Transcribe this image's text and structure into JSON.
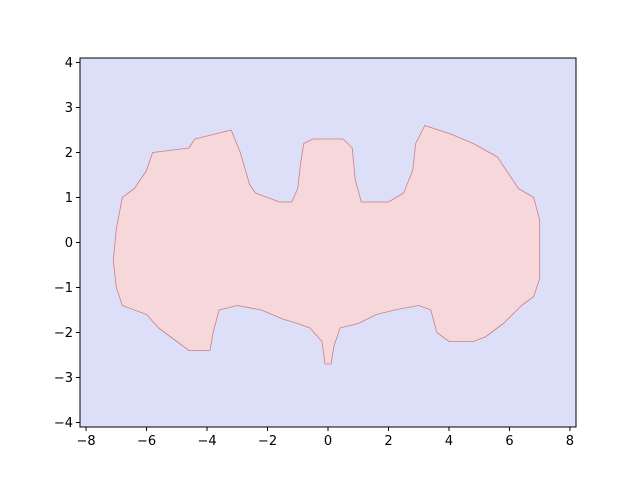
{
  "chart_data": {
    "type": "heatmap",
    "title": "",
    "xlabel": "",
    "ylabel": "",
    "xlim": [
      -8.2,
      8.2
    ],
    "ylim": [
      -4.1,
      4.1
    ],
    "x_ticks": [
      -8,
      -6,
      -4,
      -2,
      0,
      2,
      4,
      6,
      8
    ],
    "x_tick_labels": [
      "−8",
      "−6",
      "−4",
      "−2",
      "0",
      "2",
      "4",
      "6",
      "8"
    ],
    "y_ticks": [
      -4,
      -3,
      -2,
      -1,
      0,
      1,
      2,
      3,
      4
    ],
    "y_tick_labels": [
      "−4",
      "−3",
      "−2",
      "−1",
      "0",
      "1",
      "2",
      "3",
      "4"
    ],
    "grid": false,
    "legend": "none",
    "regions": [
      {
        "class": "background",
        "color": "#dcdff7"
      },
      {
        "class": "bat-shape",
        "color": "#f6d8da",
        "edge_color": "#c97f88",
        "boundary": [
          [
            -7.0,
            0.3
          ],
          [
            -6.8,
            1.0
          ],
          [
            -6.4,
            1.2
          ],
          [
            -6.0,
            1.6
          ],
          [
            -5.8,
            2.0
          ],
          [
            -4.6,
            2.1
          ],
          [
            -4.4,
            2.3
          ],
          [
            -3.8,
            2.4
          ],
          [
            -3.2,
            2.5
          ],
          [
            -2.9,
            2.0
          ],
          [
            -2.6,
            1.3
          ],
          [
            -2.4,
            1.1
          ],
          [
            -2.0,
            1.0
          ],
          [
            -1.6,
            0.9
          ],
          [
            -1.2,
            0.9
          ],
          [
            -1.0,
            1.2
          ],
          [
            -0.9,
            1.8
          ],
          [
            -0.8,
            2.2
          ],
          [
            -0.5,
            2.3
          ],
          [
            0.5,
            2.3
          ],
          [
            0.8,
            2.1
          ],
          [
            0.9,
            1.4
          ],
          [
            1.1,
            0.9
          ],
          [
            2.0,
            0.9
          ],
          [
            2.5,
            1.1
          ],
          [
            2.8,
            1.6
          ],
          [
            2.9,
            2.2
          ],
          [
            3.2,
            2.6
          ],
          [
            4.1,
            2.4
          ],
          [
            4.8,
            2.2
          ],
          [
            5.6,
            1.9
          ],
          [
            6.3,
            1.2
          ],
          [
            6.8,
            1.0
          ],
          [
            7.0,
            0.5
          ],
          [
            7.0,
            -0.8
          ],
          [
            6.8,
            -1.2
          ],
          [
            6.4,
            -1.4
          ],
          [
            5.8,
            -1.8
          ],
          [
            5.2,
            -2.1
          ],
          [
            4.8,
            -2.2
          ],
          [
            4.0,
            -2.2
          ],
          [
            3.6,
            -2.0
          ],
          [
            3.4,
            -1.5
          ],
          [
            3.0,
            -1.4
          ],
          [
            2.2,
            -1.5
          ],
          [
            1.6,
            -1.6
          ],
          [
            1.0,
            -1.8
          ],
          [
            0.4,
            -1.9
          ],
          [
            0.2,
            -2.3
          ],
          [
            0.1,
            -2.7
          ],
          [
            -0.1,
            -2.7
          ],
          [
            -0.2,
            -2.2
          ],
          [
            -0.6,
            -1.9
          ],
          [
            -1.0,
            -1.8
          ],
          [
            -1.5,
            -1.7
          ],
          [
            -2.2,
            -1.5
          ],
          [
            -3.0,
            -1.4
          ],
          [
            -3.6,
            -1.5
          ],
          [
            -3.8,
            -2.0
          ],
          [
            -3.9,
            -2.4
          ],
          [
            -4.6,
            -2.4
          ],
          [
            -5.0,
            -2.2
          ],
          [
            -5.6,
            -1.9
          ],
          [
            -6.0,
            -1.6
          ],
          [
            -6.8,
            -1.4
          ],
          [
            -7.0,
            -1.0
          ],
          [
            -7.1,
            -0.4
          ]
        ]
      }
    ]
  }
}
